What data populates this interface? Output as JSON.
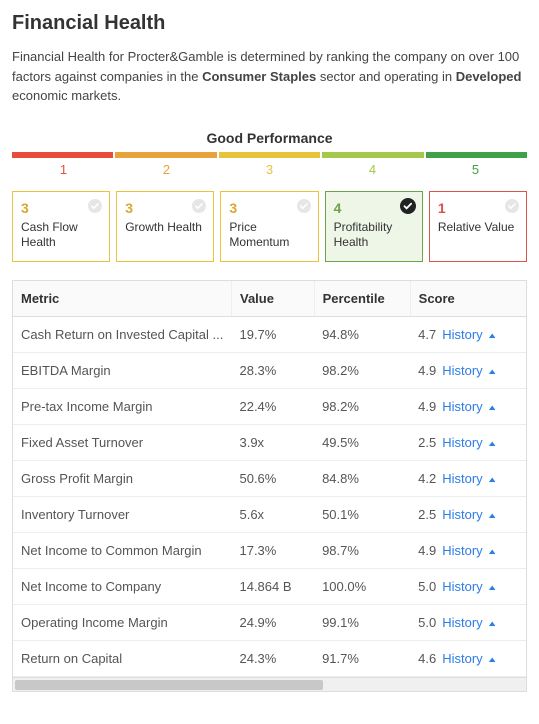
{
  "title": "Financial Health",
  "description_pre": "Financial Health for Procter&Gamble is determined by ranking the company on over 100 factors against companies in the ",
  "description_bold1": "Consumer Staples",
  "description_mid": " sector and operating in ",
  "description_bold2": "Developed",
  "description_post": " economic markets.",
  "performance": {
    "label": "Good Performance",
    "segments": [
      {
        "num": "1",
        "color": "#e74c3c"
      },
      {
        "num": "2",
        "color": "#e8a33d"
      },
      {
        "num": "3",
        "color": "#e8c43d"
      },
      {
        "num": "4",
        "color": "#a4c94a"
      },
      {
        "num": "5",
        "color": "#3fa14a"
      }
    ]
  },
  "cards": [
    {
      "score": "3",
      "label": "Cash Flow Health",
      "border": "#e8c43d",
      "score_color": "#d9a92e",
      "bg": "#ffffff",
      "selected": false
    },
    {
      "score": "3",
      "label": "Growth Health",
      "border": "#e8c43d",
      "score_color": "#d9a92e",
      "bg": "#ffffff",
      "selected": false
    },
    {
      "score": "3",
      "label": "Price Momentum",
      "border": "#e8c43d",
      "score_color": "#d9a92e",
      "bg": "#ffffff",
      "selected": false
    },
    {
      "score": "4",
      "label": "Profitability Health",
      "border": "#6fa24a",
      "score_color": "#6fa24a",
      "bg": "#eef6e7",
      "selected": true
    },
    {
      "score": "1",
      "label": "Relative Value",
      "border": "#d9534f",
      "score_color": "#d9534f",
      "bg": "#ffffff",
      "selected": false
    }
  ],
  "table": {
    "headers": [
      "Metric",
      "Value",
      "Percentile",
      "Score"
    ],
    "history_label": "History",
    "rows": [
      {
        "metric": "Cash Return on Invested Capital ...",
        "value": "19.7%",
        "percentile": "94.8%",
        "score": "4.7"
      },
      {
        "metric": "EBITDA Margin",
        "value": "28.3%",
        "percentile": "98.2%",
        "score": "4.9"
      },
      {
        "metric": "Pre-tax Income Margin",
        "value": "22.4%",
        "percentile": "98.2%",
        "score": "4.9"
      },
      {
        "metric": "Fixed Asset Turnover",
        "value": "3.9x",
        "percentile": "49.5%",
        "score": "2.5"
      },
      {
        "metric": "Gross Profit Margin",
        "value": "50.6%",
        "percentile": "84.8%",
        "score": "4.2"
      },
      {
        "metric": "Inventory Turnover",
        "value": "5.6x",
        "percentile": "50.1%",
        "score": "2.5"
      },
      {
        "metric": "Net Income to Common Margin",
        "value": "17.3%",
        "percentile": "98.7%",
        "score": "4.9"
      },
      {
        "metric": "Net Income to Company",
        "value": "14.864 B",
        "percentile": "100.0%",
        "score": "5.0"
      },
      {
        "metric": "Operating Income Margin",
        "value": "24.9%",
        "percentile": "99.1%",
        "score": "5.0"
      },
      {
        "metric": "Return on Capital",
        "value": "24.3%",
        "percentile": "91.7%",
        "score": "4.6"
      }
    ]
  }
}
